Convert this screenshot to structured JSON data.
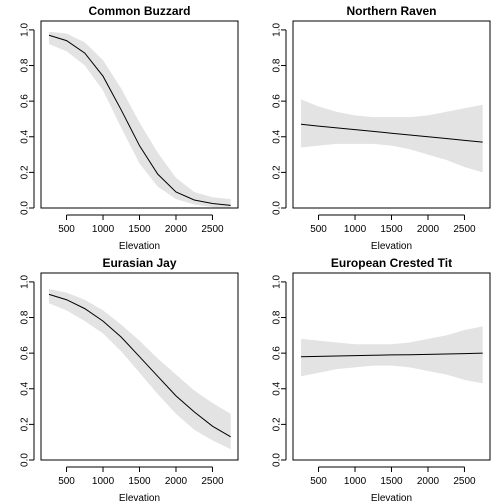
{
  "figure": {
    "background": "#ffffff",
    "band_color": "#e3e3e3",
    "line_color": "#000000"
  },
  "chart_data": [
    {
      "type": "line",
      "title": "Common Buzzard",
      "xlabel": "Elevation",
      "ylabel": "",
      "xlim": [
        150,
        2850
      ],
      "ylim": [
        0,
        1.05
      ],
      "xticks": [
        500,
        1000,
        1500,
        2000,
        2500
      ],
      "yticks": [
        0.0,
        0.2,
        0.4,
        0.6,
        0.8,
        1.0
      ],
      "xtick_labels": [
        "500",
        "1000",
        "1500",
        "2000",
        "2500"
      ],
      "ytick_labels": [
        "0.0",
        "0.2",
        "0.4",
        "0.6",
        "0.8",
        "1.0"
      ],
      "x": [
        260,
        500,
        750,
        1000,
        1250,
        1500,
        1750,
        2000,
        2250,
        2500,
        2750
      ],
      "fit": [
        0.97,
        0.94,
        0.87,
        0.74,
        0.55,
        0.35,
        0.19,
        0.09,
        0.045,
        0.025,
        0.015
      ],
      "lower": [
        0.92,
        0.88,
        0.8,
        0.66,
        0.45,
        0.25,
        0.12,
        0.05,
        0.02,
        0.005,
        0.0
      ],
      "upper": [
        0.99,
        0.98,
        0.93,
        0.83,
        0.67,
        0.48,
        0.31,
        0.17,
        0.09,
        0.06,
        0.05
      ]
    },
    {
      "type": "line",
      "title": "Northern Raven",
      "xlabel": "Elevation",
      "ylabel": "",
      "xlim": [
        150,
        2850
      ],
      "ylim": [
        0,
        1.05
      ],
      "xticks": [
        500,
        1000,
        1500,
        2000,
        2500
      ],
      "yticks": [
        0.0,
        0.2,
        0.4,
        0.6,
        0.8,
        1.0
      ],
      "xtick_labels": [
        "500",
        "1000",
        "1500",
        "2000",
        "2500"
      ],
      "ytick_labels": [
        "0.0",
        "0.2",
        "0.4",
        "0.6",
        "0.8",
        "1.0"
      ],
      "x": [
        260,
        500,
        750,
        1000,
        1250,
        1500,
        1750,
        2000,
        2250,
        2500,
        2750
      ],
      "fit": [
        0.47,
        0.46,
        0.45,
        0.44,
        0.43,
        0.42,
        0.41,
        0.4,
        0.39,
        0.38,
        0.37
      ],
      "lower": [
        0.34,
        0.35,
        0.36,
        0.36,
        0.36,
        0.35,
        0.33,
        0.3,
        0.27,
        0.23,
        0.2
      ],
      "upper": [
        0.61,
        0.57,
        0.54,
        0.52,
        0.51,
        0.51,
        0.51,
        0.52,
        0.54,
        0.56,
        0.58
      ]
    },
    {
      "type": "line",
      "title": "Eurasian Jay",
      "xlabel": "Elevation",
      "ylabel": "",
      "xlim": [
        150,
        2850
      ],
      "ylim": [
        0,
        1.05
      ],
      "xticks": [
        500,
        1000,
        1500,
        2000,
        2500
      ],
      "yticks": [
        0.0,
        0.2,
        0.4,
        0.6,
        0.8,
        1.0
      ],
      "xtick_labels": [
        "500",
        "1000",
        "1500",
        "2000",
        "2500"
      ],
      "ytick_labels": [
        "0.0",
        "0.2",
        "0.4",
        "0.6",
        "0.8",
        "1.0"
      ],
      "x": [
        260,
        500,
        750,
        1000,
        1250,
        1500,
        1750,
        2000,
        2250,
        2500,
        2750
      ],
      "fit": [
        0.93,
        0.9,
        0.85,
        0.78,
        0.69,
        0.58,
        0.47,
        0.36,
        0.27,
        0.19,
        0.13
      ],
      "lower": [
        0.88,
        0.84,
        0.78,
        0.71,
        0.61,
        0.49,
        0.37,
        0.26,
        0.17,
        0.11,
        0.06
      ],
      "upper": [
        0.96,
        0.94,
        0.9,
        0.84,
        0.76,
        0.67,
        0.57,
        0.48,
        0.39,
        0.32,
        0.26
      ]
    },
    {
      "type": "line",
      "title": "European Crested Tit",
      "xlabel": "Elevation",
      "ylabel": "",
      "xlim": [
        150,
        2850
      ],
      "ylim": [
        0,
        1.05
      ],
      "xticks": [
        500,
        1000,
        1500,
        2000,
        2500
      ],
      "yticks": [
        0.0,
        0.2,
        0.4,
        0.6,
        0.8,
        1.0
      ],
      "xtick_labels": [
        "500",
        "1000",
        "1500",
        "2000",
        "2500"
      ],
      "ytick_labels": [
        "0.0",
        "0.2",
        "0.4",
        "0.6",
        "0.8",
        "1.0"
      ],
      "x": [
        260,
        500,
        750,
        1000,
        1250,
        1500,
        1750,
        2000,
        2250,
        2500,
        2750
      ],
      "fit": [
        0.58,
        0.582,
        0.584,
        0.586,
        0.588,
        0.59,
        0.591,
        0.593,
        0.595,
        0.597,
        0.6
      ],
      "lower": [
        0.47,
        0.49,
        0.51,
        0.52,
        0.53,
        0.53,
        0.52,
        0.5,
        0.48,
        0.45,
        0.43
      ],
      "upper": [
        0.68,
        0.67,
        0.66,
        0.65,
        0.65,
        0.65,
        0.66,
        0.68,
        0.7,
        0.73,
        0.75
      ]
    }
  ]
}
